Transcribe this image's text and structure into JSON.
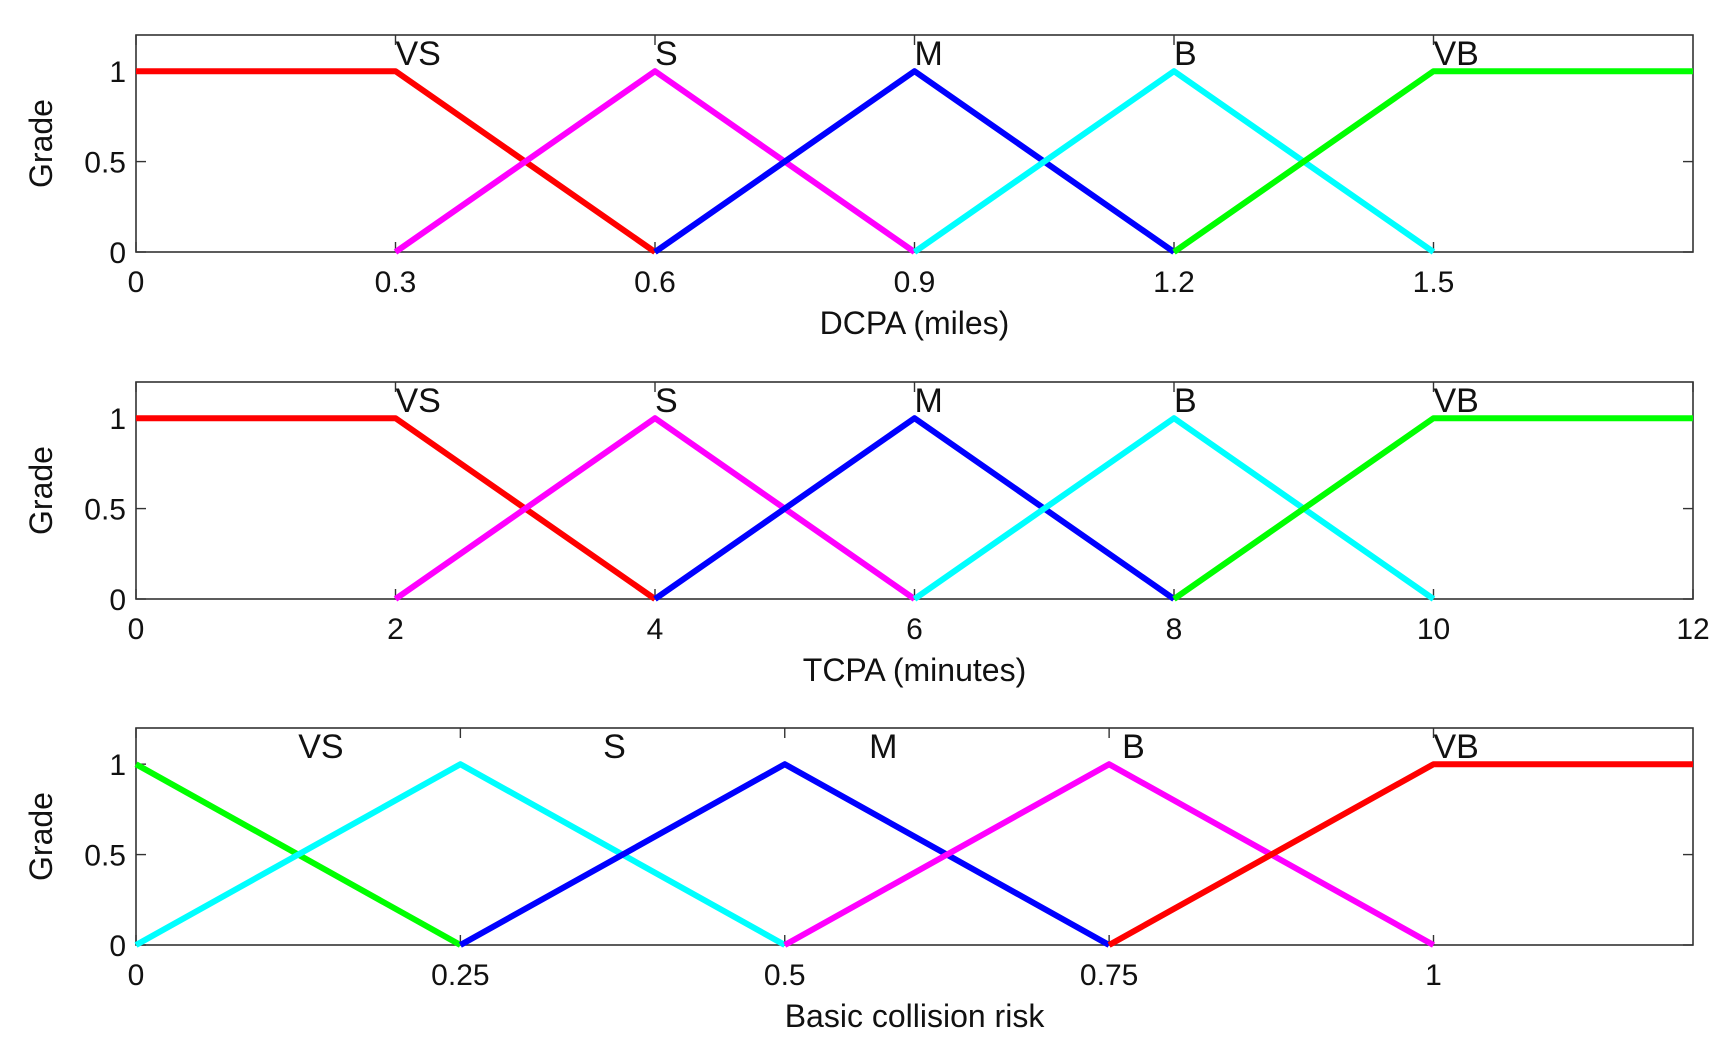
{
  "chart_data": [
    {
      "type": "line",
      "xlabel": "DCPA (miles)",
      "ylabel": "Grade",
      "xlim": [
        0,
        1.8
      ],
      "ylim": [
        0,
        1.2
      ],
      "xticks": [
        0,
        0.3,
        0.6,
        0.9,
        1.2,
        1.5
      ],
      "xtick_labels": [
        "0",
        "0.3",
        "0.6",
        "0.9",
        "1.2",
        "1.5"
      ],
      "yticks": [
        0,
        0.5,
        1
      ],
      "ytick_labels": [
        "0",
        "0.5",
        "1"
      ],
      "grid": false,
      "series": [
        {
          "name": "VS",
          "color": "#ff0000",
          "x": [
            0,
            0.3,
            0.6
          ],
          "y": [
            1,
            1,
            0
          ],
          "label_x": 0.3
        },
        {
          "name": "S",
          "color": "#ff00ff",
          "x": [
            0.3,
            0.6,
            0.9
          ],
          "y": [
            0,
            1,
            0
          ],
          "label_x": 0.6
        },
        {
          "name": "M",
          "color": "#0000ff",
          "x": [
            0.6,
            0.9,
            1.2
          ],
          "y": [
            0,
            1,
            0
          ],
          "label_x": 0.9
        },
        {
          "name": "B",
          "color": "#00ffff",
          "x": [
            0.9,
            1.2,
            1.5
          ],
          "y": [
            0,
            1,
            0
          ],
          "label_x": 1.2
        },
        {
          "name": "VB",
          "color": "#00ff00",
          "x": [
            1.2,
            1.5,
            1.8
          ],
          "y": [
            0,
            1,
            1
          ],
          "label_x": 1.5
        }
      ]
    },
    {
      "type": "line",
      "xlabel": "TCPA (minutes)",
      "ylabel": "Grade",
      "xlim": [
        0,
        12
      ],
      "ylim": [
        0,
        1.2
      ],
      "xticks": [
        0,
        2,
        4,
        6,
        8,
        10,
        12
      ],
      "xtick_labels": [
        "0",
        "2",
        "4",
        "6",
        "8",
        "10",
        "12"
      ],
      "yticks": [
        0,
        0.5,
        1
      ],
      "ytick_labels": [
        "0",
        "0.5",
        "1"
      ],
      "grid": false,
      "series": [
        {
          "name": "VS",
          "color": "#ff0000",
          "x": [
            0,
            2,
            4
          ],
          "y": [
            1,
            1,
            0
          ],
          "label_x": 2
        },
        {
          "name": "S",
          "color": "#ff00ff",
          "x": [
            2,
            4,
            6
          ],
          "y": [
            0,
            1,
            0
          ],
          "label_x": 4
        },
        {
          "name": "M",
          "color": "#0000ff",
          "x": [
            4,
            6,
            8
          ],
          "y": [
            0,
            1,
            0
          ],
          "label_x": 6
        },
        {
          "name": "B",
          "color": "#00ffff",
          "x": [
            6,
            8,
            10
          ],
          "y": [
            0,
            1,
            0
          ],
          "label_x": 8
        },
        {
          "name": "VB",
          "color": "#00ff00",
          "x": [
            8,
            10,
            12
          ],
          "y": [
            0,
            1,
            1
          ],
          "label_x": 10
        }
      ]
    },
    {
      "type": "line",
      "xlabel": "Basic collision risk",
      "ylabel": "Grade",
      "xlim": [
        0,
        1.2
      ],
      "ylim": [
        0,
        1.2
      ],
      "xticks": [
        0,
        0.25,
        0.5,
        0.75,
        1
      ],
      "xtick_labels": [
        "0",
        "0.25",
        "0.5",
        "0.75",
        "1"
      ],
      "yticks": [
        0,
        0.5,
        1
      ],
      "ytick_labels": [
        "0",
        "0.5",
        "1"
      ],
      "grid": false,
      "series": [
        {
          "name": "VS",
          "color": "#00ff00",
          "x": [
            0,
            0.25
          ],
          "y": [
            1,
            0
          ],
          "label_x": 0.125
        },
        {
          "name": "S",
          "color": "#00ffff",
          "x": [
            0,
            0.25,
            0.5
          ],
          "y": [
            0,
            1,
            0
          ],
          "label_x": 0.36
        },
        {
          "name": "M",
          "color": "#0000ff",
          "x": [
            0.25,
            0.5,
            0.75
          ],
          "y": [
            0,
            1,
            0
          ],
          "label_x": 0.565
        },
        {
          "name": "B",
          "color": "#ff00ff",
          "x": [
            0.5,
            0.75,
            1
          ],
          "y": [
            0,
            1,
            0
          ],
          "label_x": 0.76
        },
        {
          "name": "VB",
          "color": "#ff0000",
          "x": [
            0.75,
            1,
            1.2
          ],
          "y": [
            0,
            1,
            1
          ],
          "label_x": 1.0
        }
      ]
    }
  ]
}
